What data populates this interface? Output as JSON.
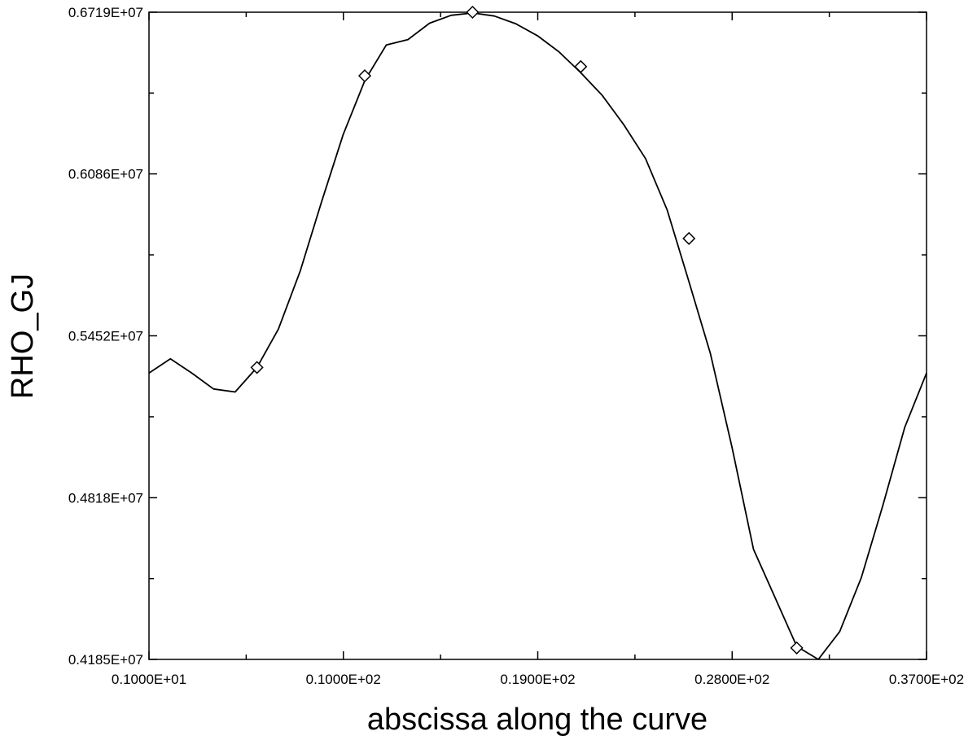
{
  "chart_data": {
    "type": "line",
    "title": "",
    "xlabel": "abscissa along the curve",
    "ylabel": "RHO_GJ",
    "xlim": [
      1,
      37
    ],
    "ylim": [
      4185000,
      6719000
    ],
    "x_ticks": [
      {
        "value": 1,
        "label": "0.1000E+01"
      },
      {
        "value": 10,
        "label": "0.1000E+02"
      },
      {
        "value": 19,
        "label": "0.1900E+02"
      },
      {
        "value": 28,
        "label": "0.2800E+02"
      },
      {
        "value": 37,
        "label": "0.3700E+02"
      }
    ],
    "y_ticks": [
      {
        "value": 4185000,
        "label": "0.4185E+07"
      },
      {
        "value": 4818000,
        "label": "0.4818E+07"
      },
      {
        "value": 5452000,
        "label": "0.5452E+07"
      },
      {
        "value": 6086000,
        "label": "0.6086E+07"
      },
      {
        "value": 6719000,
        "label": "0.6719E+07"
      }
    ],
    "x_minor_ticks": [
      5.5,
      14.5,
      23.5,
      32.5
    ],
    "y_minor_ticks": [
      4501500,
      5135000,
      5769000,
      6402500
    ],
    "grid": false,
    "legend": "none",
    "series": [
      {
        "color": "#000000",
        "marker": "diamond",
        "points": [
          [
            1.0,
            5306000
          ],
          [
            1.99,
            5362000
          ],
          [
            3.0,
            5305000
          ],
          [
            3.99,
            5244000
          ],
          [
            4.99,
            5232000
          ],
          [
            6.0,
            5328000
          ],
          [
            6.99,
            5478000
          ],
          [
            8.0,
            5705000
          ],
          [
            8.99,
            5977000
          ],
          [
            9.99,
            6240000
          ],
          [
            11.0,
            6453000
          ],
          [
            11.99,
            6591000
          ],
          [
            12.99,
            6612000
          ],
          [
            13.99,
            6676000
          ],
          [
            14.99,
            6707000
          ],
          [
            15.99,
            6716000
          ],
          [
            16.99,
            6704000
          ],
          [
            17.98,
            6674000
          ],
          [
            18.99,
            6627000
          ],
          [
            19.98,
            6564000
          ],
          [
            20.98,
            6483000
          ],
          [
            21.99,
            6393000
          ],
          [
            22.99,
            6278000
          ],
          [
            23.99,
            6146000
          ],
          [
            24.99,
            5945000
          ],
          [
            25.99,
            5667000
          ],
          [
            26.99,
            5383000
          ],
          [
            27.99,
            5017000
          ],
          [
            28.99,
            4616000
          ],
          [
            29.99,
            4427000
          ],
          [
            30.99,
            4236000
          ],
          [
            31.99,
            4185000
          ],
          [
            32.98,
            4294000
          ],
          [
            33.98,
            4505000
          ],
          [
            34.98,
            4788000
          ],
          [
            35.99,
            5093000
          ],
          [
            37.0,
            5306000
          ]
        ],
        "marker_points": [
          [
            6.0,
            5328000
          ],
          [
            10.99,
            6470000
          ],
          [
            15.98,
            6719000
          ],
          [
            20.99,
            6506000
          ],
          [
            26.0,
            5833000
          ],
          [
            30.99,
            4230000
          ]
        ]
      }
    ]
  }
}
